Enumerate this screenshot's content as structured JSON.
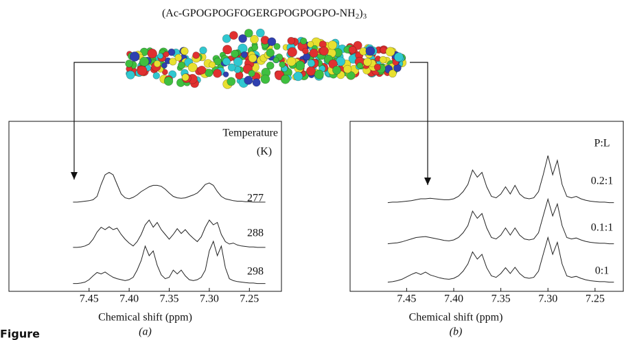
{
  "figure": {
    "formula": [
      "(Ac-GPOGPOGFOGERGPOGPOGPO-NH",
      "2",
      ")",
      "3"
    ],
    "caption": "Figure"
  },
  "chart_data": [
    {
      "type": "line",
      "panel_label": "(a)",
      "x_label": "Chemical shift (ppm)",
      "legend_title": [
        "Temperature",
        "(K)"
      ],
      "line_color": "#222",
      "xlim": [
        7.55,
        7.21
      ],
      "ylim": [
        0,
        10
      ],
      "xticks": [
        7.45,
        {
          "value": 7.4,
          "label": "7.40"
        },
        7.35,
        {
          "value": 7.3,
          "label": "7.30"
        },
        7.25
      ],
      "x": [
        7.47,
        7.465,
        7.46,
        7.455,
        7.45,
        7.445,
        7.44,
        7.435,
        7.43,
        7.425,
        7.42,
        7.415,
        7.41,
        7.405,
        7.4,
        7.395,
        7.39,
        7.385,
        7.38,
        7.375,
        7.37,
        7.365,
        7.36,
        7.355,
        7.35,
        7.345,
        7.34,
        7.335,
        7.33,
        7.325,
        7.32,
        7.315,
        7.31,
        7.305,
        7.3,
        7.295,
        7.29,
        7.285,
        7.28,
        7.275,
        7.27,
        7.265,
        7.26,
        7.255,
        7.25,
        7.245,
        7.24,
        7.235,
        7.23
      ],
      "series": [
        {
          "name": "277",
          "values": [
            0.3,
            0.3,
            0.4,
            0.5,
            0.6,
            0.8,
            1.5,
            4,
            6,
            6.5,
            6,
            4,
            2,
            1.2,
            1,
            1.3,
            1.8,
            2.5,
            3,
            3.5,
            3.8,
            3.8,
            3.6,
            3,
            2.2,
            1.5,
            1.2,
            1.1,
            1.2,
            1.5,
            1.8,
            2.2,
            3,
            4,
            4.3,
            3.8,
            2.5,
            1.5,
            1,
            0.8,
            0.6,
            0.5,
            0.5,
            0.4,
            0.4,
            0.3,
            0.3,
            0.3,
            0.3
          ]
        },
        {
          "name": "288",
          "values": [
            0.3,
            0.3,
            0.4,
            0.6,
            1,
            2,
            3.5,
            4.5,
            4,
            4.6,
            4,
            4.3,
            3,
            2,
            1.2,
            0.6,
            1.5,
            3,
            5,
            6,
            4.5,
            5.5,
            4,
            3,
            2,
            3,
            4.2,
            3.2,
            4,
            3,
            2.2,
            1.5,
            2.5,
            4.5,
            6,
            5,
            5.5,
            3,
            1.5,
            1,
            1.2,
            0.8,
            0.6,
            0.5,
            0.4,
            0.4,
            0.3,
            0.3,
            0.3
          ]
        },
        {
          "name": "298",
          "values": [
            0.2,
            0.2,
            0.3,
            0.5,
            1,
            1.8,
            2.5,
            2.2,
            2.6,
            2,
            1.5,
            1.2,
            1,
            0.8,
            1,
            1.5,
            3,
            5,
            8,
            6,
            7,
            4,
            2,
            1.2,
            1.5,
            3,
            2.2,
            3,
            1.8,
            1,
            0.8,
            1,
            1.5,
            3,
            7,
            9,
            6,
            8,
            3.5,
            1.2,
            0.8,
            0.6,
            0.5,
            0.4,
            0.3,
            0.3,
            0.2,
            0.2,
            0.2
          ]
        }
      ]
    },
    {
      "type": "line",
      "panel_label": "(b)",
      "x_label": "Chemical shift (ppm)",
      "legend_title": [
        "P:L"
      ],
      "line_color": "#222",
      "xlim": [
        7.51,
        7.22
      ],
      "ylim": [
        0,
        10
      ],
      "xticks": [
        7.45,
        {
          "value": 7.4,
          "label": "7.40"
        },
        7.35,
        {
          "value": 7.3,
          "label": "7.30"
        },
        7.25
      ],
      "x": [
        7.47,
        7.465,
        7.46,
        7.455,
        7.45,
        7.445,
        7.44,
        7.435,
        7.43,
        7.425,
        7.42,
        7.415,
        7.41,
        7.405,
        7.4,
        7.395,
        7.39,
        7.385,
        7.38,
        7.375,
        7.37,
        7.365,
        7.36,
        7.355,
        7.35,
        7.345,
        7.34,
        7.335,
        7.33,
        7.325,
        7.32,
        7.315,
        7.31,
        7.305,
        7.3,
        7.295,
        7.29,
        7.285,
        7.28,
        7.275,
        7.27,
        7.265,
        7.26,
        7.255,
        7.25,
        7.245,
        7.24,
        7.235,
        7.23
      ],
      "series": [
        {
          "name": "0.2:1",
          "values": [
            0.2,
            0.3,
            0.3,
            0.4,
            0.5,
            0.6,
            0.8,
            1,
            1,
            1.1,
            1,
            0.9,
            0.8,
            0.8,
            1,
            1.5,
            2.5,
            4,
            7,
            5.5,
            6.5,
            3.5,
            1.5,
            1.2,
            2,
            3.5,
            2,
            3.8,
            2,
            1.2,
            1,
            1.2,
            2.5,
            6,
            10,
            6,
            9,
            4,
            1.5,
            1.2,
            1.5,
            1,
            0.7,
            0.5,
            0.4,
            0.3,
            0.3,
            0.2,
            0.2
          ]
        },
        {
          "name": "0.1:1",
          "values": [
            0.2,
            0.3,
            0.4,
            0.6,
            0.9,
            1.2,
            1.5,
            1.6,
            1.7,
            1.5,
            1.3,
            1.1,
            0.9,
            0.8,
            1,
            1.5,
            2.5,
            4,
            7,
            5.5,
            6.5,
            3.5,
            1.5,
            1.2,
            2,
            3.5,
            2,
            3.5,
            2,
            1.2,
            1,
            1.2,
            2.5,
            6,
            9.5,
            6,
            8.5,
            4,
            1.5,
            1.2,
            1.4,
            1,
            0.7,
            0.5,
            0.4,
            0.3,
            0.3,
            0.2,
            0.2
          ]
        },
        {
          "name": "0:1",
          "values": [
            0.2,
            0.3,
            0.5,
            0.8,
            1.3,
            1.8,
            2.2,
            1.8,
            2.3,
            1.7,
            1.4,
            1.1,
            0.9,
            0.8,
            1,
            1.5,
            2.5,
            4,
            6.5,
            5,
            6,
            3.2,
            1.5,
            1.2,
            2,
            3.2,
            2,
            3.3,
            2,
            1.2,
            1,
            1.2,
            2.5,
            6,
            9.5,
            6,
            8.5,
            4,
            1.5,
            1.2,
            1.4,
            1,
            0.7,
            0.5,
            0.4,
            0.3,
            0.3,
            0.2,
            0.2
          ]
        }
      ]
    }
  ]
}
